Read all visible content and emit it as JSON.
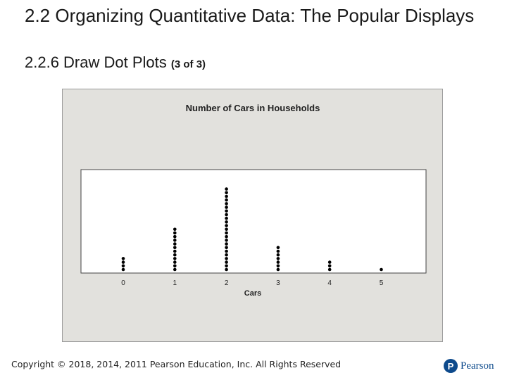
{
  "header": {
    "title": "2.2 Organizing Quantitative Data: The Popular Displays",
    "subtitle_main": "2.2.6 Draw Dot Plots",
    "subtitle_small": "(3 of 3)"
  },
  "footer": {
    "copyright": "Copyright © 2018, 2014, 2011 Pearson Education, Inc. All Rights Reserved",
    "logo_mark": "P",
    "logo_text": "Pearson"
  },
  "colors": {
    "logo": "#0d4a8c",
    "figure_bg": "#e2e1dd",
    "plot_bg": "#ffffff",
    "dot": "#000000"
  },
  "chart_data": {
    "type": "scatter",
    "subtype": "dot plot",
    "title": "Number of Cars in Households",
    "xlabel": "Cars",
    "ylabel": "",
    "x": [
      0,
      1,
      2,
      3,
      4,
      5
    ],
    "counts": [
      4,
      12,
      23,
      7,
      3,
      1
    ],
    "xlim": [
      0,
      5
    ],
    "grid": false,
    "legend": "none"
  }
}
